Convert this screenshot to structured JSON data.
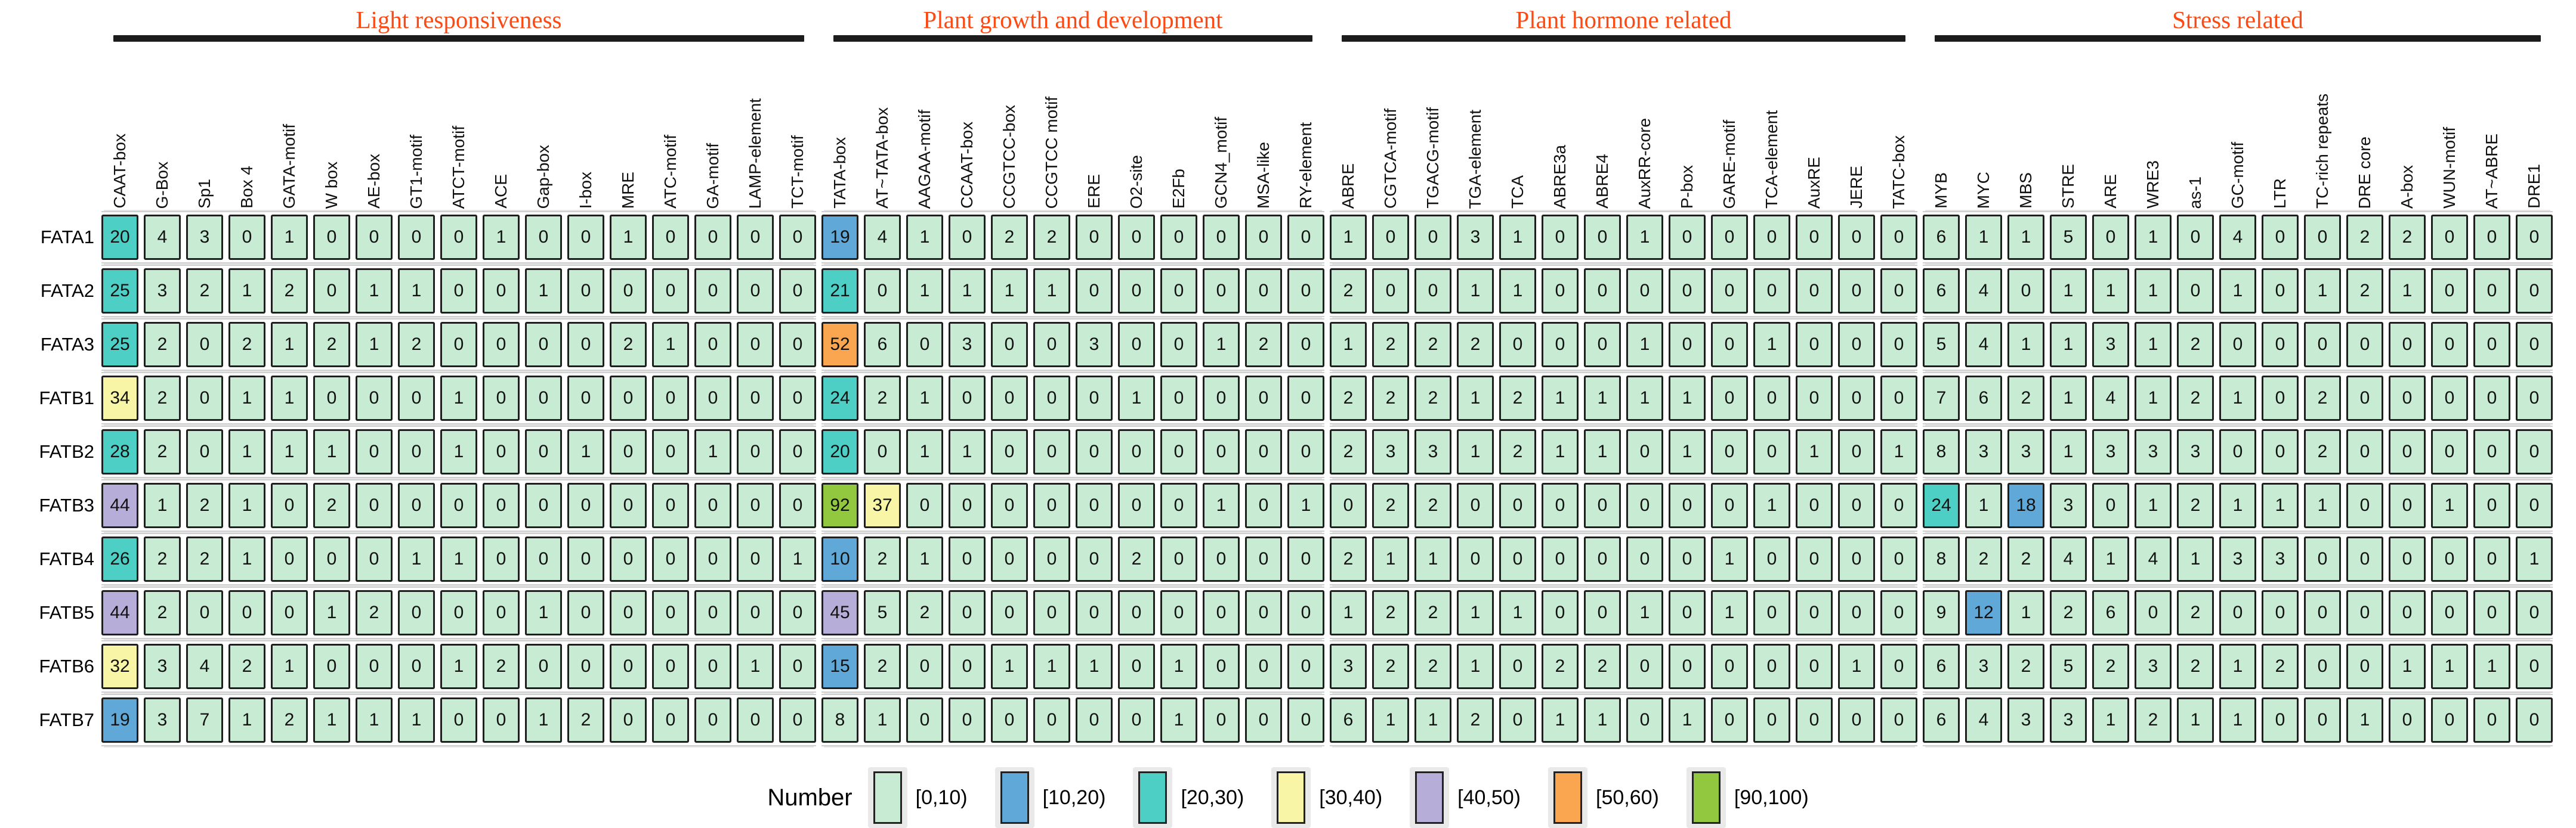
{
  "figure": {
    "legend_title": "Number",
    "category_color": "#fb4a14"
  },
  "chart_data": {
    "type": "heatmap",
    "legend_title": "Number",
    "category_color": "#fb4a14",
    "col_groups": [
      {
        "name": "Light responsiveness",
        "columns": [
          "CAAT-box",
          "G-Box",
          "Sp1",
          "Box 4",
          "GATA-motif",
          "W box",
          "AE-box",
          "GT1-motif",
          "ATCT-motif",
          "ACE",
          "Gap-box",
          "I-box",
          "MRE",
          "ATC-motif",
          "GA-motif",
          "LAMP-element",
          "TCT-motif"
        ]
      },
      {
        "name": "Plant growth and development",
        "columns": [
          "TATA-box",
          "AT~TATA-box",
          "AAGAA-motif",
          "CCAAT-box",
          "CCGTCC-box",
          "CCGTCC motif",
          "ERE",
          "O2-site",
          "E2Fb",
          "GCN4_motif",
          "MSA-like",
          "RY-element"
        ]
      },
      {
        "name": "Plant hormone related",
        "columns": [
          "ABRE",
          "CGTCA-motif",
          "TGACG-motif",
          "TGA-element",
          "TCA",
          "ABRE3a",
          "ABRE4",
          "AuxRR-core",
          "P-box",
          "GARE-motif",
          "TCA-element",
          "AuxRE",
          "JERE",
          "TATC-box"
        ]
      },
      {
        "name": "Stress related",
        "columns": [
          "MYB",
          "MYC",
          "MBS",
          "STRE",
          "ARE",
          "WRE3",
          "as-1",
          "GC-motif",
          "LTR",
          "TC-rich repeats",
          "DRE core",
          "A-box",
          "WUN-motif",
          "AT~ABRE",
          "DRE1"
        ]
      }
    ],
    "rows": [
      {
        "name": "FATA1",
        "values": [
          [
            20,
            4,
            3,
            0,
            1,
            0,
            0,
            0,
            0,
            1,
            0,
            0,
            1,
            0,
            0,
            0,
            0
          ],
          [
            19,
            4,
            1,
            0,
            2,
            2,
            0,
            0,
            0,
            0,
            0,
            0
          ],
          [
            1,
            0,
            0,
            3,
            1,
            0,
            0,
            1,
            0,
            0,
            0,
            0,
            0,
            0
          ],
          [
            6,
            1,
            1,
            5,
            0,
            1,
            0,
            4,
            0,
            0,
            2,
            2,
            0,
            0,
            0
          ]
        ]
      },
      {
        "name": "FATA2",
        "values": [
          [
            25,
            3,
            2,
            1,
            2,
            0,
            1,
            1,
            0,
            0,
            1,
            0,
            0,
            0,
            0,
            0,
            0
          ],
          [
            21,
            0,
            1,
            1,
            1,
            1,
            0,
            0,
            0,
            0,
            0,
            0
          ],
          [
            2,
            0,
            0,
            1,
            1,
            0,
            0,
            0,
            0,
            0,
            0,
            0,
            0,
            0
          ],
          [
            6,
            4,
            0,
            1,
            1,
            1,
            0,
            1,
            0,
            1,
            2,
            1,
            0,
            0,
            0
          ]
        ]
      },
      {
        "name": "FATA3",
        "values": [
          [
            25,
            2,
            0,
            2,
            1,
            2,
            1,
            2,
            0,
            0,
            0,
            0,
            2,
            1,
            0,
            0,
            0
          ],
          [
            52,
            6,
            0,
            3,
            0,
            0,
            3,
            0,
            0,
            1,
            2,
            0
          ],
          [
            1,
            2,
            2,
            2,
            0,
            0,
            0,
            1,
            0,
            0,
            1,
            0,
            0,
            0
          ],
          [
            5,
            4,
            1,
            1,
            3,
            1,
            2,
            0,
            0,
            0,
            0,
            0,
            0,
            0,
            0
          ]
        ]
      },
      {
        "name": "FATB1",
        "values": [
          [
            34,
            2,
            0,
            1,
            1,
            0,
            0,
            0,
            1,
            0,
            0,
            0,
            0,
            0,
            0,
            0,
            0
          ],
          [
            24,
            2,
            1,
            0,
            0,
            0,
            0,
            1,
            0,
            0,
            0,
            0
          ],
          [
            2,
            2,
            2,
            1,
            2,
            1,
            1,
            1,
            1,
            0,
            0,
            0,
            0,
            0
          ],
          [
            7,
            6,
            2,
            1,
            4,
            1,
            2,
            1,
            0,
            2,
            0,
            0,
            0,
            0,
            0
          ]
        ]
      },
      {
        "name": "FATB2",
        "values": [
          [
            28,
            2,
            0,
            1,
            1,
            1,
            0,
            0,
            1,
            0,
            0,
            1,
            0,
            0,
            1,
            0,
            0
          ],
          [
            20,
            0,
            1,
            1,
            0,
            0,
            0,
            0,
            0,
            0,
            0,
            0
          ],
          [
            2,
            3,
            3,
            1,
            2,
            1,
            1,
            0,
            1,
            0,
            0,
            1,
            0,
            1
          ],
          [
            8,
            3,
            3,
            1,
            3,
            3,
            3,
            0,
            0,
            2,
            0,
            0,
            0,
            0,
            0
          ]
        ]
      },
      {
        "name": "FATB3",
        "values": [
          [
            44,
            1,
            2,
            1,
            0,
            2,
            0,
            0,
            0,
            0,
            0,
            0,
            0,
            0,
            0,
            0,
            0
          ],
          [
            92,
            37,
            0,
            0,
            0,
            0,
            0,
            0,
            0,
            1,
            0,
            1
          ],
          [
            0,
            2,
            2,
            0,
            0,
            0,
            0,
            0,
            0,
            0,
            1,
            0,
            0,
            0
          ],
          [
            24,
            1,
            18,
            3,
            0,
            1,
            2,
            1,
            1,
            1,
            0,
            0,
            1,
            0,
            0
          ]
        ]
      },
      {
        "name": "FATB4",
        "values": [
          [
            26,
            2,
            2,
            1,
            0,
            0,
            0,
            1,
            1,
            0,
            0,
            0,
            0,
            0,
            0,
            0,
            1
          ],
          [
            10,
            2,
            1,
            0,
            0,
            0,
            0,
            2,
            0,
            0,
            0,
            0
          ],
          [
            2,
            1,
            1,
            0,
            0,
            0,
            0,
            0,
            0,
            1,
            0,
            0,
            0,
            0
          ],
          [
            8,
            2,
            2,
            4,
            1,
            4,
            1,
            3,
            3,
            0,
            0,
            0,
            0,
            0,
            1
          ]
        ]
      },
      {
        "name": "FATB5",
        "values": [
          [
            44,
            2,
            0,
            0,
            0,
            1,
            2,
            0,
            0,
            0,
            1,
            0,
            0,
            0,
            0,
            0,
            0
          ],
          [
            45,
            5,
            2,
            0,
            0,
            0,
            0,
            0,
            0,
            0,
            0,
            0
          ],
          [
            1,
            2,
            2,
            1,
            1,
            0,
            0,
            1,
            0,
            1,
            0,
            0,
            0,
            0
          ],
          [
            9,
            12,
            1,
            2,
            6,
            0,
            2,
            0,
            0,
            0,
            0,
            0,
            0,
            0,
            0
          ]
        ]
      },
      {
        "name": "FATB6",
        "values": [
          [
            32,
            3,
            4,
            2,
            1,
            0,
            0,
            0,
            1,
            2,
            0,
            0,
            0,
            0,
            0,
            1,
            0
          ],
          [
            15,
            2,
            0,
            0,
            1,
            1,
            1,
            0,
            1,
            0,
            0,
            0
          ],
          [
            3,
            2,
            2,
            1,
            0,
            2,
            2,
            0,
            0,
            0,
            0,
            0,
            1,
            0
          ],
          [
            6,
            3,
            2,
            5,
            2,
            3,
            2,
            1,
            2,
            0,
            0,
            1,
            1,
            1,
            0
          ]
        ]
      },
      {
        "name": "FATB7",
        "values": [
          [
            19,
            3,
            7,
            1,
            2,
            1,
            1,
            1,
            0,
            0,
            1,
            2,
            0,
            0,
            0,
            0,
            0
          ],
          [
            8,
            1,
            0,
            0,
            0,
            0,
            0,
            0,
            1,
            0,
            0,
            0
          ],
          [
            6,
            1,
            1,
            2,
            0,
            1,
            1,
            0,
            1,
            0,
            0,
            0,
            0,
            0
          ],
          [
            6,
            4,
            3,
            3,
            1,
            2,
            1,
            1,
            0,
            0,
            1,
            0,
            0,
            0,
            0
          ]
        ]
      }
    ],
    "bins": [
      {
        "range": "[0,10)",
        "min": 0,
        "max": 10,
        "color": "#c7ebd3"
      },
      {
        "range": "[10,20)",
        "min": 10,
        "max": 20,
        "color": "#5fa8d8"
      },
      {
        "range": "[20,30)",
        "min": 20,
        "max": 30,
        "color": "#4dcfc5"
      },
      {
        "range": "[30,40)",
        "min": 30,
        "max": 40,
        "color": "#f8f6a6"
      },
      {
        "range": "[40,50)",
        "min": 40,
        "max": 50,
        "color": "#b6aed8"
      },
      {
        "range": "[50,60)",
        "min": 50,
        "max": 60,
        "color": "#faa54f"
      },
      {
        "range": "[90,100)",
        "min": 90,
        "max": 100,
        "color": "#92c83f"
      }
    ]
  }
}
